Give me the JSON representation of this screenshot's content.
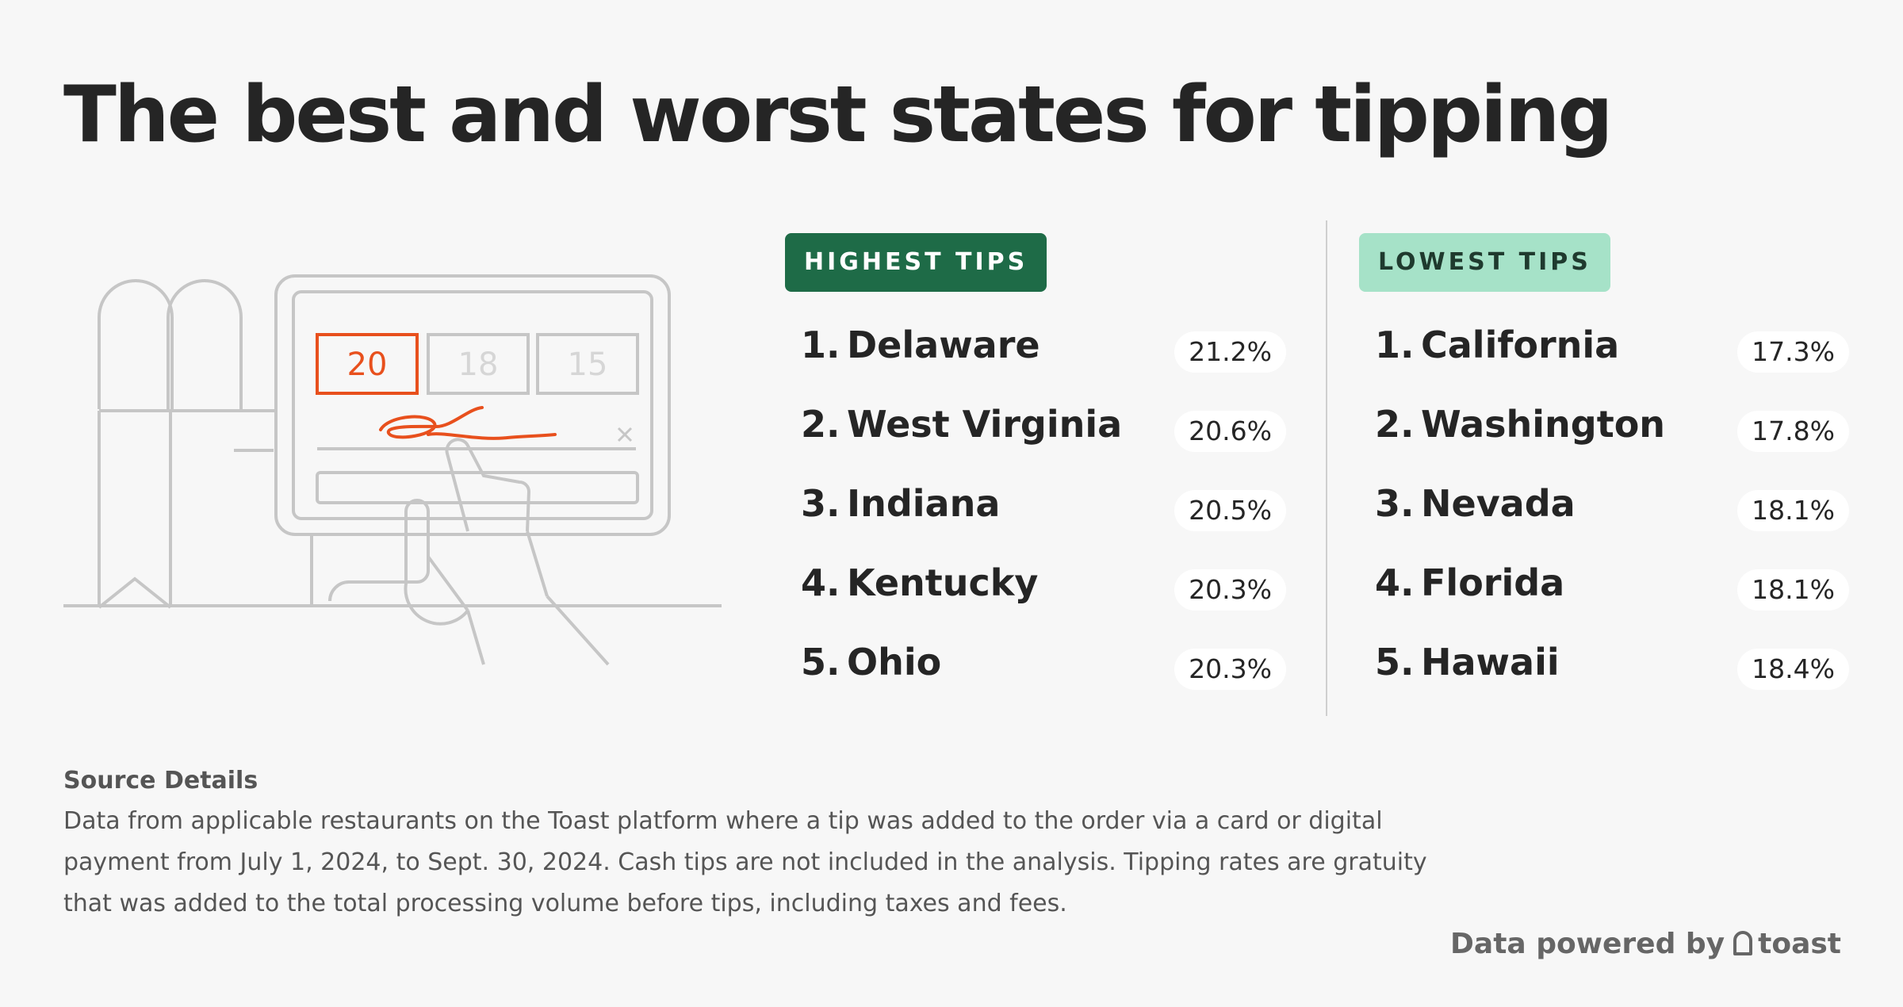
{
  "title": "The best and worst states for tipping",
  "illustration": {
    "tip_options": [
      "20",
      "18",
      "15"
    ],
    "accent_color": "#e8501d"
  },
  "highest": {
    "label": "HIGHEST TIPS",
    "color": "#1e6b47",
    "items": [
      {
        "rank": "1.",
        "state": "Delaware",
        "value": "21.2%"
      },
      {
        "rank": "2.",
        "state": "West Virginia",
        "value": "20.6%"
      },
      {
        "rank": "3.",
        "state": "Indiana",
        "value": "20.5%"
      },
      {
        "rank": "4.",
        "state": "Kentucky",
        "value": "20.3%"
      },
      {
        "rank": "5.",
        "state": "Ohio",
        "value": "20.3%"
      }
    ]
  },
  "lowest": {
    "label": "LOWEST TIPS",
    "color": "#a6e2c8",
    "items": [
      {
        "rank": "1.",
        "state": "California",
        "value": "17.3%"
      },
      {
        "rank": "2.",
        "state": "Washington",
        "value": "17.8%"
      },
      {
        "rank": "3.",
        "state": "Nevada",
        "value": "18.1%"
      },
      {
        "rank": "4.",
        "state": "Florida",
        "value": "18.1%"
      },
      {
        "rank": "5.",
        "state": "Hawaii",
        "value": "18.4%"
      }
    ]
  },
  "source": {
    "title": "Source Details",
    "body": "Data from applicable restaurants on the Toast platform where a tip was added to the order via a card or digital payment from July 1, 2024, to Sept. 30, 2024. Cash tips are not included in the analysis. Tipping rates are gratuity that was added to the total processing volume before tips, including taxes and fees."
  },
  "footer": {
    "powered_by": "Data powered by",
    "brand": "toast",
    "icon": "toast-logo-icon"
  }
}
